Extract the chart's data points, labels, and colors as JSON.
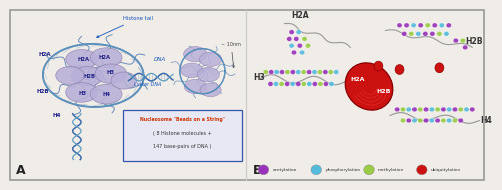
{
  "background_color": "#f0ede8",
  "panel_divider": "#cccccc",
  "border_color": "#999999",
  "panel_a": {
    "label": "A",
    "bg": "#f0ede8",
    "nucleosome_color": "#b8b0d8",
    "nucleosome_outline": "#9080b0",
    "dna_color1": "#3a6aaa",
    "dna_color2": "#5a9abf",
    "dna_cross": "#7799bb",
    "histone_label_color": "#222288",
    "labels_inside": [
      [
        3.15,
        7.1,
        "H2A"
      ],
      [
        4.05,
        7.2,
        "H2A"
      ],
      [
        3.4,
        6.1,
        "H2B"
      ],
      [
        4.3,
        6.3,
        "H3"
      ],
      [
        3.1,
        5.1,
        "H3"
      ],
      [
        4.1,
        5.0,
        "H4"
      ]
    ],
    "labels_outside": [
      [
        1.5,
        7.4,
        "H2A"
      ],
      [
        1.4,
        5.2,
        "H2B"
      ],
      [
        2.0,
        3.8,
        "H4"
      ]
    ],
    "annotation_histone_tail": "Histone tail",
    "annotation_dna": "DNA",
    "annotation_linker": "Linker DNA",
    "annotation_size": "~ 10nm",
    "box_text1": "Nucleosome \"Beads on a String\"",
    "box_text2": "( 8 Histone molecules +",
    "box_text3": "147 base-pairs of DNA )",
    "box_color": "#e8e8f5",
    "box_border": "#3355aa"
  },
  "panel_b": {
    "label": "B",
    "bg": "#ffffff",
    "nuc_color": "#cc1111",
    "nuc_outline": "#881111",
    "tail_color": "#999999",
    "ac": "#9933bb",
    "pc": "#55bbdd",
    "mc": "#99cc44",
    "uc": "#cc1111",
    "label_h2a_top": "H2A",
    "label_h2b_top": "H2B",
    "label_h3": "H3",
    "label_h4": "H4",
    "label_h2a_nuc": "H2A",
    "label_h2b_nuc": "H2B",
    "legend": [
      "acetylation",
      "phosphorylation",
      "methylation",
      "ubiquitylation"
    ]
  }
}
